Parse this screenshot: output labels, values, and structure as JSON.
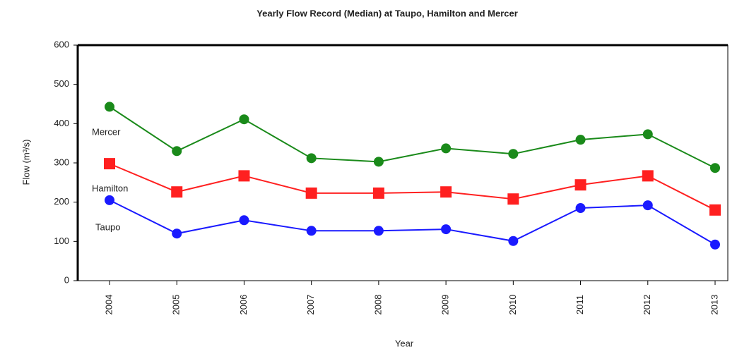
{
  "chart_data": {
    "type": "line",
    "title": "Yearly Flow Record (Median) at Taupo, Hamilton and Mercer",
    "x_label": "Year",
    "y_label": "Flow (m³/s)",
    "categories": [
      "2004",
      "2005",
      "2006",
      "2007",
      "2008",
      "2009",
      "2010",
      "2011",
      "2012",
      "2013"
    ],
    "series": [
      {
        "name": "Mercer",
        "color": "#1a8a1a",
        "marker": "circle",
        "values": [
          443,
          330,
          411,
          312,
          303,
          337,
          323,
          359,
          373,
          287
        ]
      },
      {
        "name": "Hamilton",
        "color": "#ff2020",
        "marker": "square",
        "values": [
          298,
          226,
          267,
          223,
          223,
          226,
          208,
          244,
          267,
          180
        ]
      },
      {
        "name": "Taupo",
        "color": "#1a1aff",
        "marker": "circle",
        "values": [
          205,
          120,
          154,
          127,
          127,
          131,
          101,
          185,
          192,
          92
        ]
      }
    ],
    "ylim": [
      0,
      600
    ],
    "yticks": [
      0,
      100,
      200,
      300,
      400,
      500,
      600
    ],
    "grid": false
  }
}
